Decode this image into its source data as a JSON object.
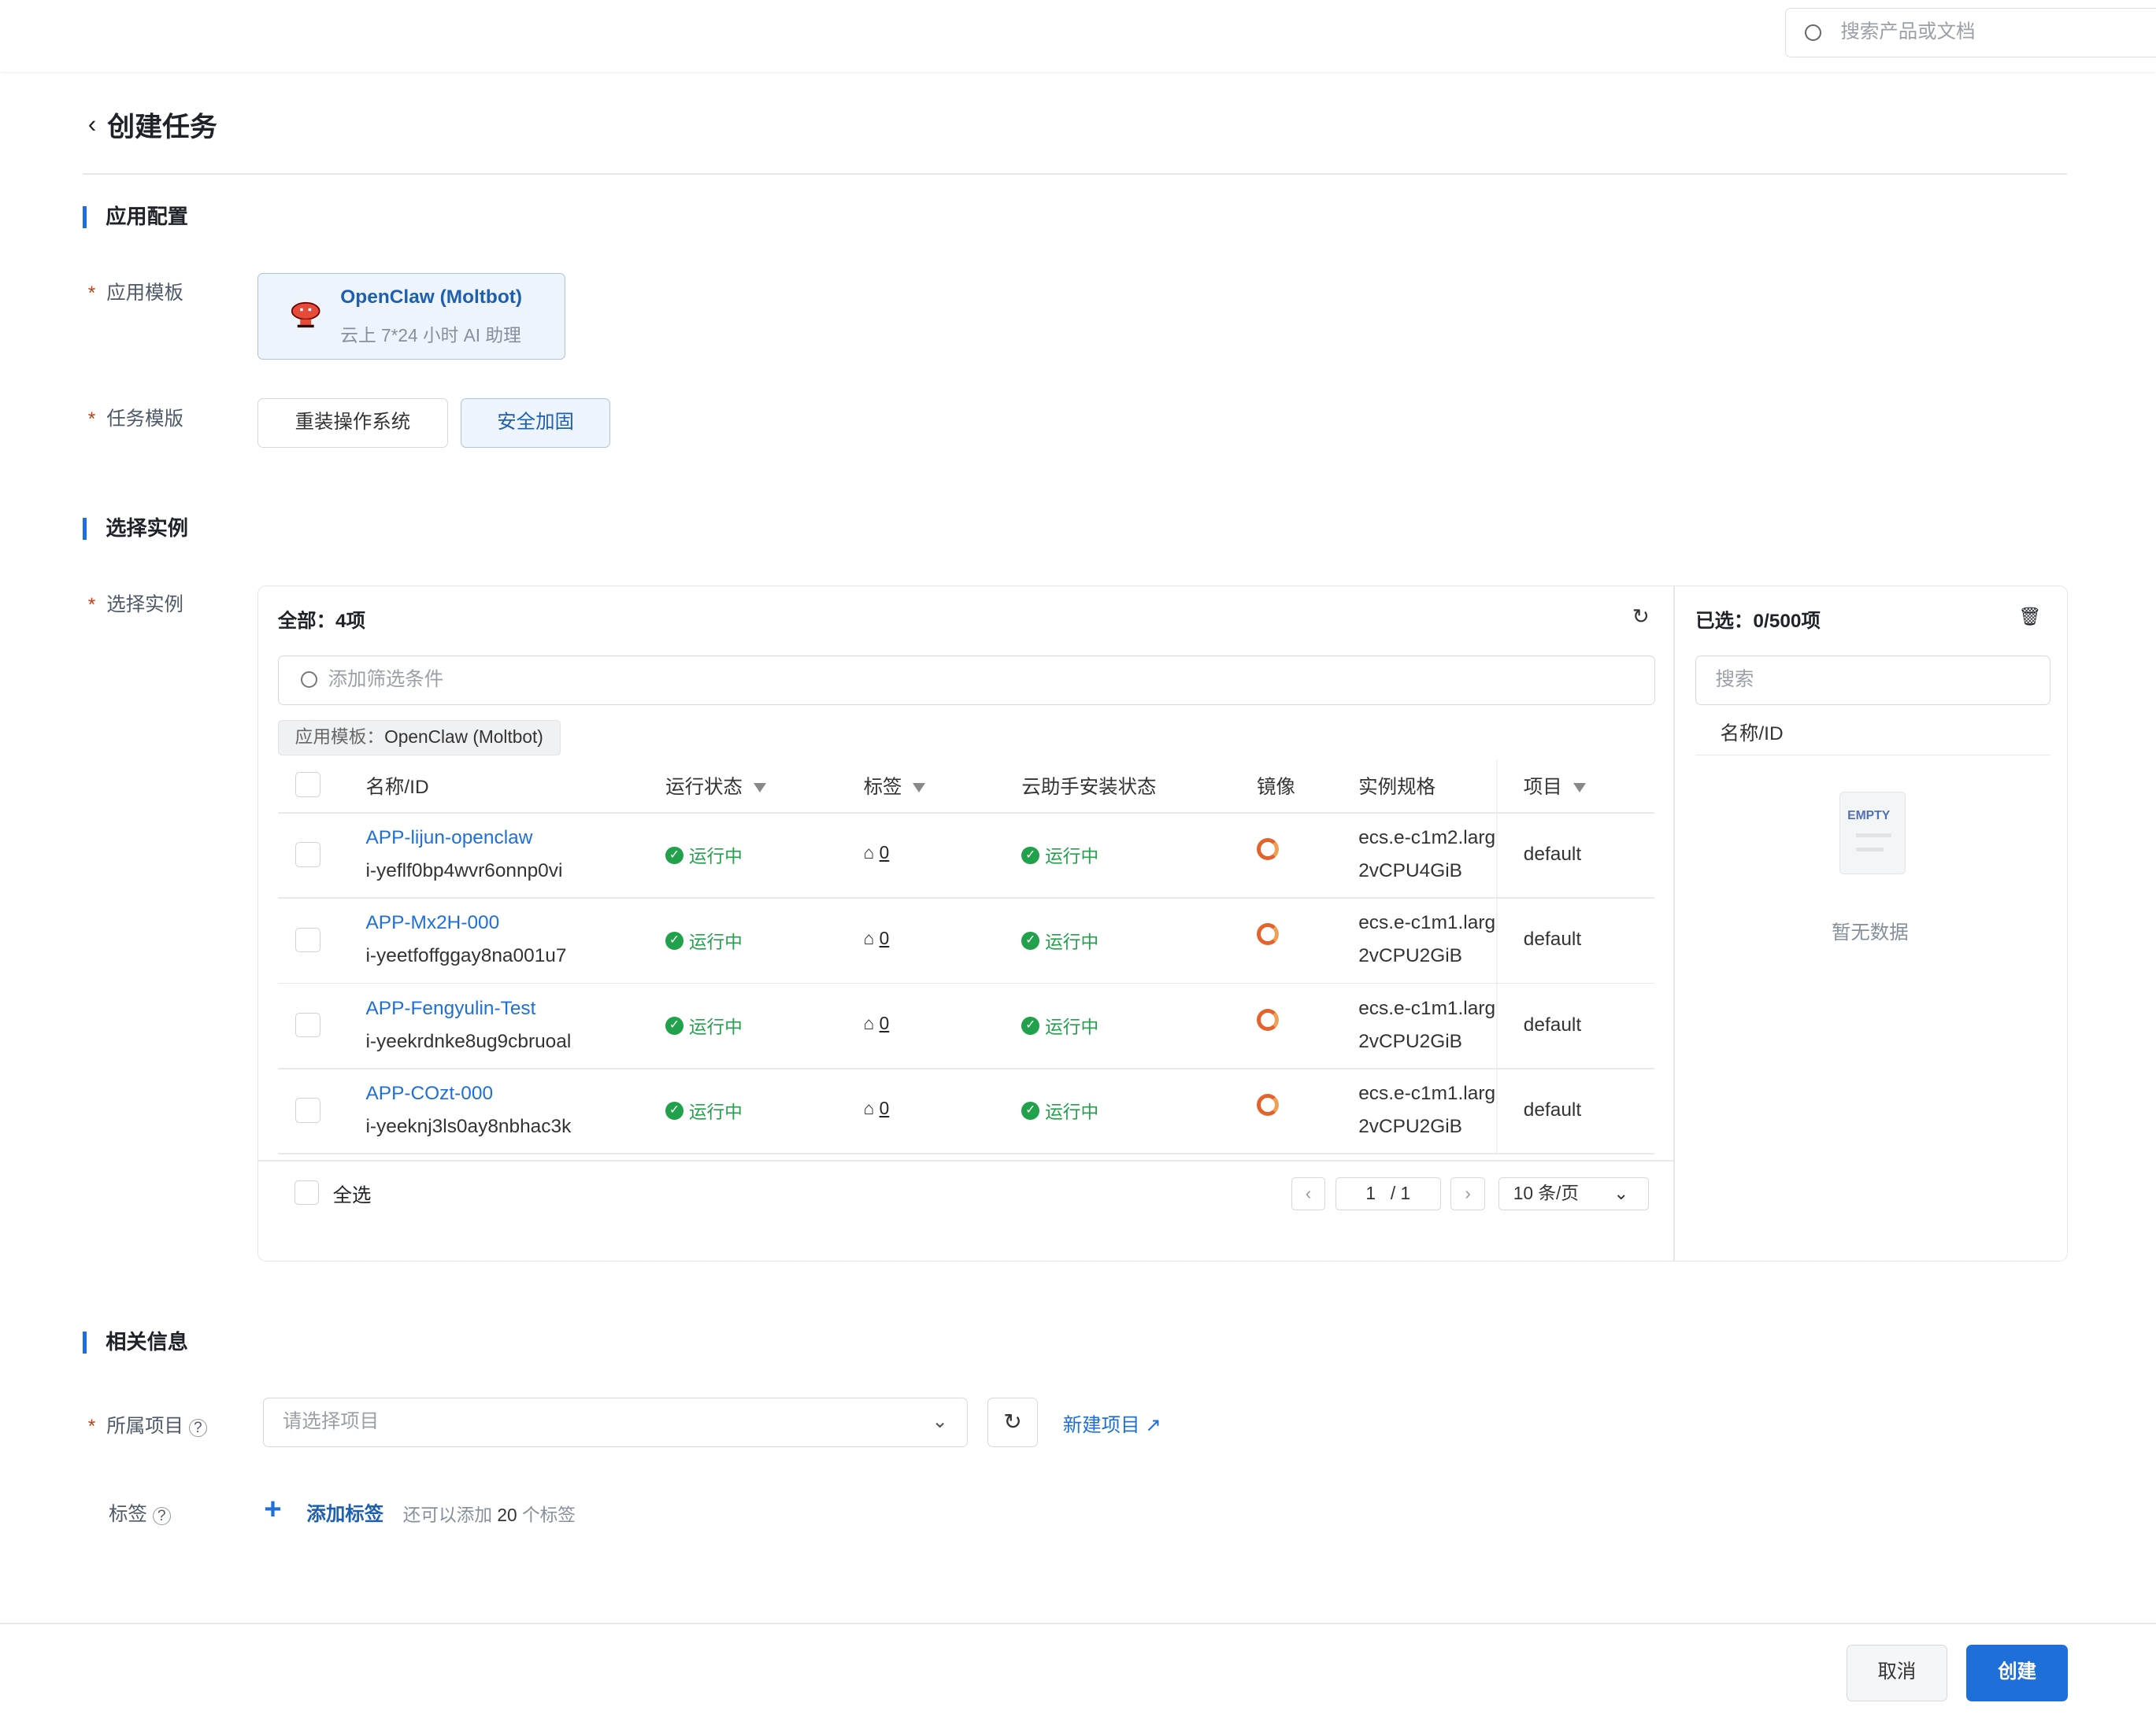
{
  "header": {
    "search_placeholder": "搜索产品或文档"
  },
  "page": {
    "title": "创建任务"
  },
  "sections": {
    "app_config": "应用配置",
    "select_instance": "选择实例",
    "related_info": "相关信息"
  },
  "app_config": {
    "template_label": "应用模板",
    "template": {
      "name": "OpenClaw (Moltbot)",
      "desc": "云上 7*24 小时 AI 助理"
    },
    "task_template_label": "任务模版",
    "task_templates": [
      {
        "label": "重装操作系统",
        "selected": false
      },
      {
        "label": "安全加固",
        "selected": true
      }
    ]
  },
  "instances": {
    "label": "选择实例",
    "total": "全部：4项",
    "filter_placeholder": "添加筛选条件",
    "chip_key": "应用模板：",
    "chip_value": "OpenClaw (Moltbot)",
    "columns": [
      "名称/ID",
      "运行状态",
      "标签",
      "云助手安装状态",
      "镜像",
      "实例规格",
      "项目"
    ],
    "rows": [
      {
        "name": "APP-lijun-openclaw",
        "id": "i-yeflf0bp4wvr6onnp0vi",
        "status": "运行中",
        "tags": "0",
        "assistant": "运行中",
        "spec": "ecs.e-c1m2.larg",
        "spec2": "2vCPU4GiB",
        "project": "default"
      },
      {
        "name": "APP-Mx2H-000",
        "id": "i-yeetfoffggay8na001u7",
        "status": "运行中",
        "tags": "0",
        "assistant": "运行中",
        "spec": "ecs.e-c1m1.larg",
        "spec2": "2vCPU2GiB",
        "project": "default"
      },
      {
        "name": "APP-Fengyulin-Test",
        "id": "i-yeekrdnke8ug9cbruoal",
        "status": "运行中",
        "tags": "0",
        "assistant": "运行中",
        "spec": "ecs.e-c1m1.larg",
        "spec2": "2vCPU2GiB",
        "project": "default"
      },
      {
        "name": "APP-COzt-000",
        "id": "i-yeeknj3ls0ay8nbhac3k",
        "status": "运行中",
        "tags": "0",
        "assistant": "运行中",
        "spec": "ecs.e-c1m1.larg",
        "spec2": "2vCPU2GiB",
        "project": "default"
      }
    ],
    "select_all": "全选",
    "pagination": {
      "current": "1",
      "total": "/ 1",
      "page_size": "10 条/页"
    },
    "selected": {
      "title": "已选：0/500项",
      "search_placeholder": "搜索",
      "column": "名称/ID",
      "empty_icon_text": "EMPTY",
      "empty": "暂无数据"
    }
  },
  "related": {
    "project_label": "所属项目",
    "project_placeholder": "请选择项目",
    "new_project": "新建项目",
    "tags_label": "标签",
    "add_tag": "添加标签",
    "tag_hint_pre": "还可以添加",
    "tag_hint_num": "20",
    "tag_hint_post": "个标签"
  },
  "footer": {
    "cancel": "取消",
    "create": "创建"
  },
  "colors": {
    "primary": "#1e6fd9",
    "success": "#21a14b",
    "required": "#d4380d"
  }
}
